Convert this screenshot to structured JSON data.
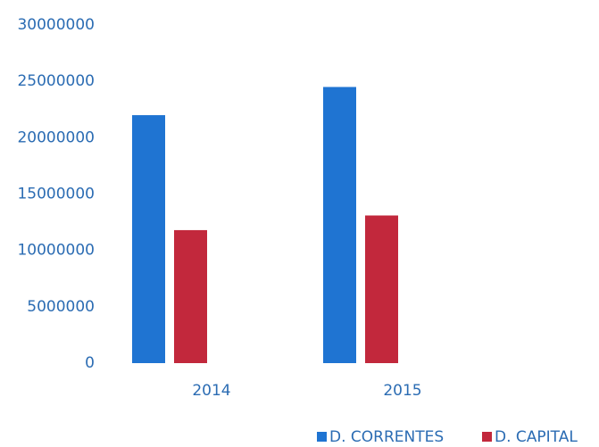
{
  "chart_data": {
    "type": "bar",
    "categories": [
      "2014",
      "2015"
    ],
    "series": [
      {
        "name": "D. CORRENTES",
        "color": "#1f74d2",
        "values": [
          22000000,
          24500000
        ]
      },
      {
        "name": "D. CAPITAL",
        "color": "#c2283c",
        "values": [
          11800000,
          13100000
        ]
      }
    ],
    "ylim": [
      0,
      30000000
    ],
    "yticks": [
      0,
      5000000,
      10000000,
      15000000,
      20000000,
      25000000,
      30000000
    ],
    "grid": false,
    "legend": "bottom-right"
  }
}
